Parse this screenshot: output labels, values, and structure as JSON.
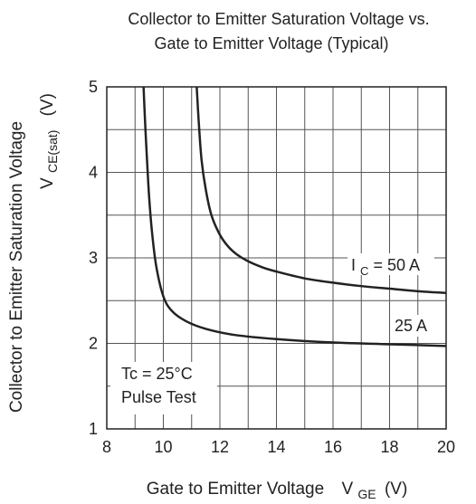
{
  "chart_data": {
    "type": "line",
    "title": "Collector to Emitter Saturation Voltage vs.",
    "subtitle": "Gate to Emitter Voltage (Typical)",
    "xlabel": {
      "text": "Gate to Emitter Voltage",
      "symbol": "V",
      "subscript": "GE",
      "unit": "(V)"
    },
    "ylabel": {
      "text": "Collector to Emitter Saturation Voltage",
      "symbol": "V",
      "subscript": "CE(sat)",
      "unit": "(V)"
    },
    "xlim": [
      8,
      20
    ],
    "ylim": [
      1,
      5
    ],
    "xticks": [
      "8",
      "10",
      "12",
      "14",
      "16",
      "18",
      "20"
    ],
    "yticks": [
      "1",
      "2",
      "3",
      "4",
      "5"
    ],
    "grid": true,
    "annotations": {
      "temp": "Tc = 25°C",
      "test": "Pulse Test"
    },
    "series": [
      {
        "name": "I",
        "name_subscript": "C",
        "name_suffix": " = 50 A",
        "x": [
          11.18,
          11.25,
          11.35,
          11.5,
          11.7,
          12.0,
          12.3,
          12.6,
          13.0,
          13.5,
          14.0,
          15.0,
          16.0,
          17.0,
          18.0,
          19.0,
          20.0
        ],
        "y": [
          5.0,
          4.6,
          4.15,
          3.8,
          3.5,
          3.27,
          3.13,
          3.04,
          2.96,
          2.89,
          2.84,
          2.76,
          2.71,
          2.67,
          2.64,
          2.61,
          2.59
        ]
      },
      {
        "name": "25 A",
        "x": [
          9.3,
          9.36,
          9.43,
          9.5,
          9.6,
          9.75,
          10.0,
          10.3,
          10.8,
          11.5,
          12.5,
          14.0,
          16.0,
          18.0,
          20.0
        ],
        "y": [
          5.0,
          4.55,
          4.1,
          3.7,
          3.3,
          2.9,
          2.55,
          2.38,
          2.26,
          2.17,
          2.1,
          2.05,
          2.01,
          1.99,
          1.97
        ]
      }
    ]
  }
}
